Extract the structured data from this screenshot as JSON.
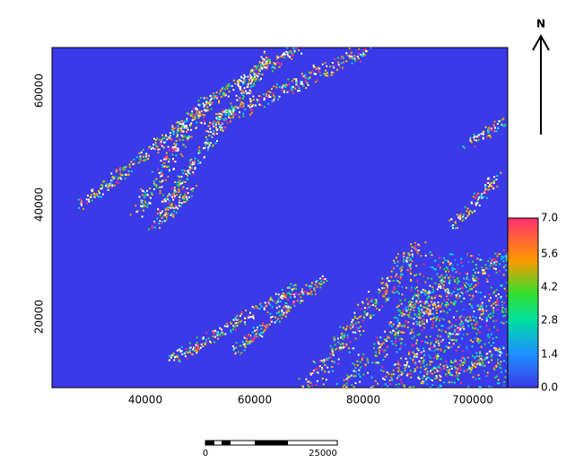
{
  "map": {
    "y_ticks": [
      "60000",
      "40000",
      "20000"
    ],
    "x_ticks": [
      "40000",
      "60000",
      "80000",
      "700000"
    ],
    "colorbar": {
      "labels": [
        "7.0",
        "5.6",
        "4.2",
        "2.8",
        "1.4",
        "0.0"
      ]
    },
    "north": "N",
    "scale_bar": {
      "labels": [
        "0",
        "25000"
      ]
    }
  }
}
